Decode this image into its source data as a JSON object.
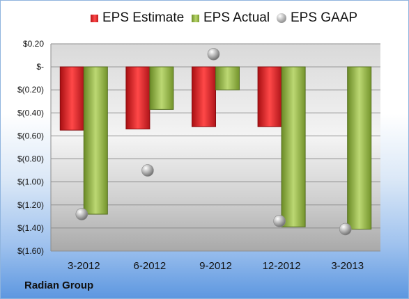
{
  "company_label": "Radian Group",
  "chart_data": {
    "type": "bar",
    "categories": [
      "3-2012",
      "6-2012",
      "9-2012",
      "12-2012",
      "3-2013"
    ],
    "series": [
      {
        "name": "EPS Estimate",
        "kind": "bar",
        "color": "#e02a2a",
        "values": [
          -0.55,
          -0.54,
          -0.52,
          -0.52,
          null
        ]
      },
      {
        "name": "EPS Actual",
        "kind": "bar",
        "color": "#8fb045",
        "values": [
          -1.28,
          -0.37,
          -0.2,
          -1.39,
          -1.41
        ]
      },
      {
        "name": "EPS GAAP",
        "kind": "marker",
        "color": "#a8a8a8",
        "values": [
          -1.28,
          -0.9,
          0.11,
          -1.34,
          -1.41
        ]
      }
    ],
    "ylim": [
      -1.6,
      0.2
    ],
    "yticks": [
      0.2,
      0,
      -0.2,
      -0.4,
      -0.6,
      -0.8,
      -1.0,
      -1.2,
      -1.4,
      -1.6
    ],
    "ytick_labels": [
      "$0.20",
      "$-",
      "$(0.20)",
      "$(0.40)",
      "$(0.60)",
      "$(0.80)",
      "$(1.00)",
      "$(1.20)",
      "$(1.40)",
      "$(1.60)"
    ],
    "xlabel": "",
    "ylabel": "",
    "grid": true,
    "legend_position": "top"
  }
}
